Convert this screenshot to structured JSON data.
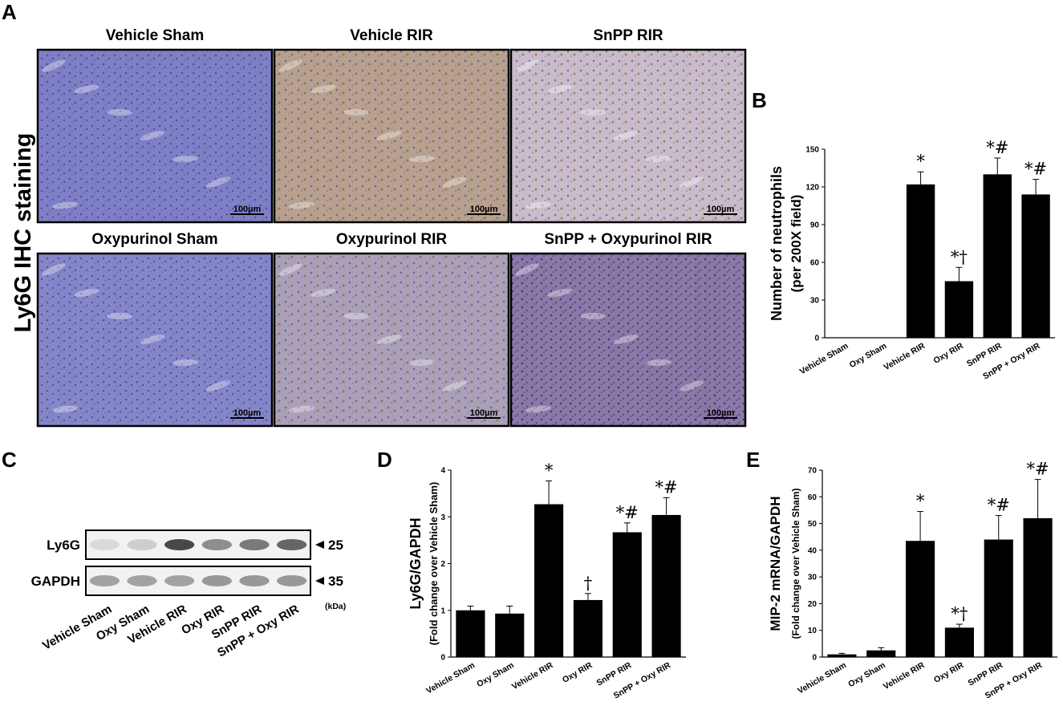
{
  "panels": {
    "A": {
      "letter": "A",
      "side_label": "Ly6G IHC staining",
      "scale_bar": "100µm",
      "images": [
        {
          "title": "Vehicle Sham",
          "stain": "light",
          "fill": "#7e7fc4"
        },
        {
          "title": "Vehicle RIR",
          "stain": "heavy",
          "fill": "#b8a08e"
        },
        {
          "title": "SnPP RIR",
          "stain": "medium",
          "fill": "#c9bcc9"
        },
        {
          "title": "Oxypurinol Sham",
          "stain": "light",
          "fill": "#8586c7"
        },
        {
          "title": "Oxypurinol RIR",
          "stain": "medium",
          "fill": "#aba0b8"
        },
        {
          "title": "SnPP + Oxypurinol RIR",
          "stain": "dark",
          "fill": "#8a78a8"
        }
      ]
    },
    "B": {
      "letter": "B"
    },
    "C": {
      "letter": "C",
      "rows": [
        {
          "label": "Ly6G",
          "marker": "25",
          "band_intensity": [
            0.12,
            0.18,
            0.85,
            0.5,
            0.6,
            0.7
          ]
        },
        {
          "label": "GAPDH",
          "marker": "35",
          "band_intensity": [
            0.4,
            0.4,
            0.4,
            0.45,
            0.45,
            0.45
          ]
        }
      ],
      "unit": "(kDa)",
      "categories": [
        "Vehicle Sham",
        "Oxy Sham",
        "Vehicle RIR",
        "Oxy RIR",
        "SnPP RIR",
        "SnPP + Oxy RIR"
      ]
    },
    "D": {
      "letter": "D"
    },
    "E": {
      "letter": "E"
    }
  },
  "chart_data": [
    {
      "panel": "B",
      "type": "bar",
      "categories": [
        "Vehicle Sham",
        "Oxy Sham",
        "Vehicle RIR",
        "Oxy RIR",
        "SnPP RIR",
        "SnPP + Oxy RIR"
      ],
      "values": [
        0,
        0,
        122,
        45,
        130,
        114
      ],
      "errors": [
        0,
        0,
        10,
        11,
        13,
        12
      ],
      "significance": [
        "",
        "",
        "*",
        "*†",
        "*#",
        "*#"
      ],
      "ylabel": "Number of neutrophils",
      "ylabel2": "(per 200X field)",
      "ylim": [
        0,
        150
      ],
      "yticks": [
        0,
        30,
        60,
        90,
        120,
        150
      ]
    },
    {
      "panel": "D",
      "type": "bar",
      "categories": [
        "Vehicle Sham",
        "Oxy Sham",
        "Vehicle RIR",
        "Oxy RIR",
        "SnPP RIR",
        "SnPP + Oxy RIR"
      ],
      "values": [
        1.0,
        0.93,
        3.27,
        1.22,
        2.67,
        3.04
      ],
      "errors": [
        0.09,
        0.16,
        0.5,
        0.14,
        0.2,
        0.37
      ],
      "significance": [
        "",
        "",
        "*",
        "†",
        "*#",
        "*#"
      ],
      "ylabel": "Ly6G/GAPDH",
      "ylabel2": "(Fold change over Vehicle Sham)",
      "ylim": [
        0,
        4
      ],
      "yticks": [
        0,
        1,
        2,
        3,
        4
      ]
    },
    {
      "panel": "E",
      "type": "bar",
      "categories": [
        "Vehicle Sham",
        "Oxy Sham",
        "Vehicle RIR",
        "Oxy RIR",
        "SnPP RIR",
        "SnPP + Oxy RIR"
      ],
      "values": [
        1,
        2.5,
        43.5,
        11,
        44,
        52
      ],
      "errors": [
        0.4,
        1.0,
        11,
        1.3,
        9,
        14.5
      ],
      "significance": [
        "",
        "",
        "*",
        "*†",
        "*#",
        "*#"
      ],
      "ylabel": "MIP-2 mRNA/GAPDH",
      "ylabel2": "(Fold change over Vehicle Sham)",
      "ylim": [
        0,
        70
      ],
      "yticks": [
        0,
        10,
        20,
        30,
        40,
        50,
        60,
        70
      ]
    }
  ]
}
